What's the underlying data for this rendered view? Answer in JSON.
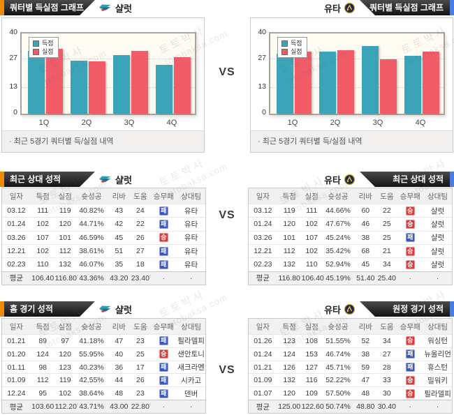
{
  "page": {
    "vs": "VS"
  },
  "watermark": {
    "line1": "토토박사",
    "line2": "totobaksa.com"
  },
  "headers": {
    "chart": "쿼터별 득실점 그래프",
    "recent": "최근 상대 성적",
    "home": "홈 경기 성적",
    "away": "원정 경기 성적"
  },
  "teams": {
    "left": "샬럿",
    "right": "유타"
  },
  "chart_footnote": "· 최근 5경기 쿼터별 득/실점 내역",
  "colors": {
    "accent_orange": "#f08a00",
    "accent_blue": "#4c7ce0",
    "bar_score_teal": "#3ba4b8",
    "bar_concede_red": "#f25b68",
    "win_badge_red": "#d93a3a",
    "loss_badge_blue": "#3c55c0"
  },
  "chart_data": [
    {
      "type": "bar",
      "team": "샬럿",
      "title": "쿼터별 득실점 그래프",
      "categories": [
        "1Q",
        "2Q",
        "3Q",
        "4Q"
      ],
      "series": [
        {
          "name": "득점",
          "values": [
            31.2,
            26.3,
            29.3,
            24.3
          ]
        },
        {
          "name": "실점",
          "values": [
            32.3,
            26.1,
            31.2,
            28.3
          ]
        }
      ],
      "ylim": [
        0,
        40
      ],
      "yticks": [
        0,
        13,
        27,
        40
      ]
    },
    {
      "type": "bar",
      "team": "유타",
      "title": "쿼터별 득실점 그래프",
      "categories": [
        "1Q",
        "2Q",
        "3Q",
        "4Q"
      ],
      "series": [
        {
          "name": "득점",
          "values": [
            29.9,
            30.9,
            33.7,
            28.8
          ]
        },
        {
          "name": "실점",
          "values": [
            30.9,
            31.8,
            27.1,
            30.9
          ]
        }
      ],
      "ylim": [
        0,
        40
      ],
      "yticks": [
        0,
        13,
        27,
        40
      ]
    }
  ],
  "table_columns": [
    "일자",
    "득점",
    "실점",
    "슛성공",
    "리바",
    "도움",
    "승무패",
    "상대팀"
  ],
  "tables": {
    "recent_left": {
      "rows": [
        [
          "03.12",
          "111",
          "119",
          "40.82%",
          "43",
          "24",
          "패",
          "유타"
        ],
        [
          "01.24",
          "102",
          "120",
          "44.71%",
          "42",
          "22",
          "패",
          "유타"
        ],
        [
          "03.26",
          "107",
          "101",
          "46.59%",
          "45",
          "26",
          "승",
          "유타"
        ],
        [
          "12.21",
          "102",
          "112",
          "38.61%",
          "51",
          "27",
          "패",
          "유타"
        ],
        [
          "02.23",
          "110",
          "132",
          "46.07%",
          "35",
          "18",
          "패",
          "유타"
        ]
      ],
      "avg": [
        "평균",
        "106.40",
        "116.80",
        "43.36%",
        "43.20",
        "23.40",
        "·",
        "·"
      ]
    },
    "recent_right": {
      "rows": [
        [
          "03.12",
          "119",
          "111",
          "44.66%",
          "60",
          "22",
          "승",
          "샬럿"
        ],
        [
          "01.24",
          "120",
          "102",
          "47.67%",
          "46",
          "25",
          "승",
          "샬럿"
        ],
        [
          "03.26",
          "101",
          "107",
          "45.24%",
          "38",
          "25",
          "패",
          "샬럿"
        ],
        [
          "12.21",
          "112",
          "102",
          "35.42%",
          "68",
          "21",
          "승",
          "샬럿"
        ],
        [
          "02.23",
          "132",
          "110",
          "52.94%",
          "45",
          "34",
          "승",
          "샬럿"
        ]
      ],
      "avg": [
        "평균",
        "116.80",
        "106.40",
        "45.19%",
        "51.40",
        "25.40",
        "·",
        "·"
      ]
    },
    "home_left": {
      "rows": [
        [
          "01.21",
          "89",
          "97",
          "41.18%",
          "47",
          "23",
          "패",
          "필라델피"
        ],
        [
          "01.20",
          "124",
          "120",
          "55.95%",
          "40",
          "25",
          "승",
          "샌안토니"
        ],
        [
          "01.11",
          "98",
          "123",
          "40.23%",
          "36",
          "17",
          "패",
          "새크라멘"
        ],
        [
          "01.09",
          "112",
          "119",
          "42.55%",
          "44",
          "26",
          "패",
          "시카고"
        ],
        [
          "12.24",
          "95",
          "102",
          "38.64%",
          "48",
          "23",
          "패",
          "덴버"
        ]
      ],
      "avg": [
        "평균",
        "103.60",
        "112.20",
        "43.71%",
        "43.00",
        "22.80",
        "·",
        "·"
      ]
    },
    "away_right": {
      "rows": [
        [
          "01.26",
          "123",
          "108",
          "51.55%",
          "52",
          "34",
          "승",
          "워싱턴"
        ],
        [
          "01.24",
          "124",
          "153",
          "46.74%",
          "38",
          "27",
          "패",
          "뉴올리언"
        ],
        [
          "01.21",
          "126",
          "127",
          "45.71%",
          "59",
          "28",
          "패",
          "휴스턴"
        ],
        [
          "01.09",
          "132",
          "116",
          "52.22%",
          "47",
          "33",
          "승",
          "밀워키"
        ],
        [
          "01.07",
          "120",
          "109",
          "57.50%",
          "48",
          "30",
          "승",
          "필라델피"
        ]
      ],
      "avg": [
        "평균",
        "125.00",
        "122.60",
        "50.74%",
        "48.80",
        "30.40",
        "·",
        "·"
      ]
    }
  }
}
